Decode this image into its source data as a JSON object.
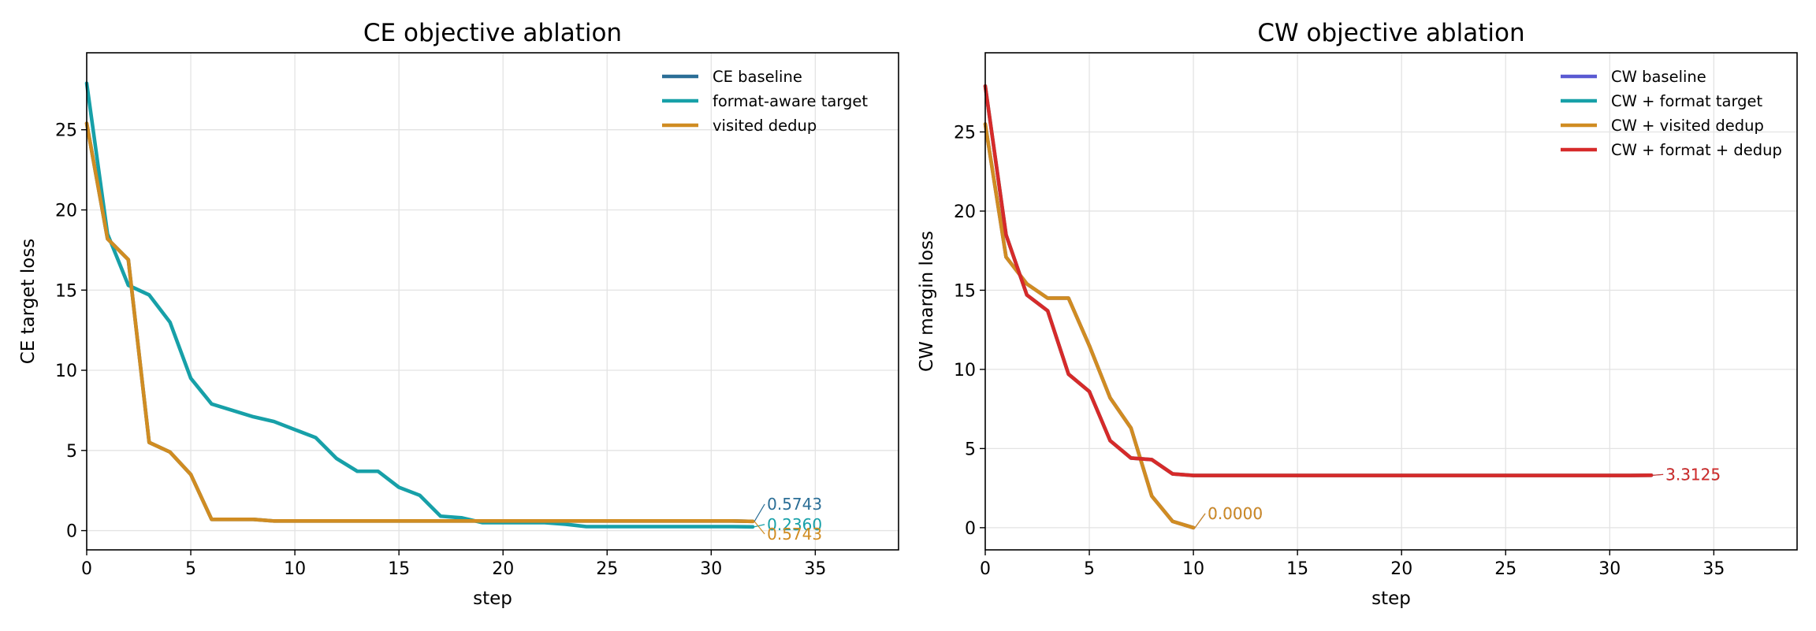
{
  "chart_data": [
    {
      "type": "line",
      "title": "CE objective ablation",
      "xlabel": "step",
      "ylabel": "CE target loss",
      "xlim": [
        0,
        39
      ],
      "ylim": [
        -1.2,
        29.8
      ],
      "xticks": [
        0,
        5,
        10,
        15,
        20,
        25,
        30,
        35
      ],
      "yticks": [
        0,
        5,
        10,
        15,
        20,
        25
      ],
      "grid": true,
      "legend_position": "top-right",
      "series": [
        {
          "name": "CE baseline",
          "color": "#2b6e96",
          "x": [
            0,
            1,
            2,
            3,
            4,
            5,
            6,
            7,
            8,
            9,
            10,
            11,
            12,
            13,
            14,
            15,
            16,
            17,
            18,
            19,
            20,
            21,
            22,
            23,
            24,
            25,
            26,
            27,
            28,
            29,
            30,
            31,
            32
          ],
          "y": [
            25.4,
            18.2,
            16.9,
            5.5,
            4.9,
            3.5,
            0.7,
            0.7,
            0.7,
            0.6,
            0.6,
            0.6,
            0.6,
            0.6,
            0.6,
            0.6,
            0.6,
            0.6,
            0.6,
            0.6,
            0.6,
            0.6,
            0.6,
            0.6,
            0.6,
            0.6,
            0.6,
            0.6,
            0.6,
            0.6,
            0.6,
            0.6,
            0.5743
          ],
          "end_label": "0.5743"
        },
        {
          "name": "format-aware target",
          "color": "#17a0a8",
          "x": [
            0,
            1,
            2,
            3,
            4,
            5,
            6,
            7,
            8,
            9,
            10,
            11,
            12,
            13,
            14,
            15,
            16,
            17,
            18,
            19,
            20,
            21,
            22,
            23,
            24,
            25,
            26,
            27,
            28,
            29,
            30,
            31,
            32
          ],
          "y": [
            27.9,
            18.5,
            15.3,
            14.7,
            13.0,
            9.5,
            7.9,
            7.5,
            7.1,
            6.8,
            6.3,
            5.8,
            4.5,
            3.7,
            3.7,
            2.7,
            2.2,
            0.9,
            0.8,
            0.5,
            0.5,
            0.5,
            0.5,
            0.4,
            0.25,
            0.25,
            0.25,
            0.25,
            0.25,
            0.25,
            0.25,
            0.25,
            0.236
          ],
          "end_label": "0.2360"
        },
        {
          "name": "visited dedup",
          "color": "#d08c22",
          "x": [
            0,
            1,
            2,
            3,
            4,
            5,
            6,
            7,
            8,
            9,
            10,
            11,
            12,
            13,
            14,
            15,
            16,
            17,
            18,
            19,
            20,
            21,
            22,
            23,
            24,
            25,
            26,
            27,
            28,
            29,
            30,
            31,
            32
          ],
          "y": [
            25.4,
            18.2,
            16.9,
            5.5,
            4.9,
            3.5,
            0.7,
            0.7,
            0.7,
            0.6,
            0.6,
            0.6,
            0.6,
            0.6,
            0.6,
            0.6,
            0.6,
            0.6,
            0.6,
            0.6,
            0.6,
            0.6,
            0.6,
            0.6,
            0.6,
            0.6,
            0.6,
            0.6,
            0.6,
            0.6,
            0.6,
            0.6,
            0.5743
          ],
          "end_label": "0.5743"
        }
      ]
    },
    {
      "type": "line",
      "title": "CW objective ablation",
      "xlabel": "step",
      "ylabel": "CW margin loss",
      "xlim": [
        0,
        39
      ],
      "ylim": [
        -1.4,
        30.0
      ],
      "xticks": [
        0,
        5,
        10,
        15,
        20,
        25,
        30,
        35
      ],
      "yticks": [
        0,
        5,
        10,
        15,
        20,
        25
      ],
      "grid": true,
      "legend_position": "top-right",
      "series": [
        {
          "name": "CW baseline",
          "color": "#5a5ad2",
          "x": [
            0,
            1,
            2,
            3,
            4,
            5,
            6,
            7,
            8,
            9,
            10
          ],
          "y": [
            25.5,
            17.1,
            15.4,
            14.5,
            14.5,
            11.5,
            8.2,
            6.3,
            2.0,
            0.4,
            0.0
          ],
          "end_label": "0.0000"
        },
        {
          "name": "CW + format target",
          "color": "#17a0a8",
          "x": [
            0,
            1,
            2,
            3,
            4,
            5,
            6,
            7,
            8,
            9,
            10,
            11,
            12,
            13,
            14,
            15,
            16,
            17,
            18,
            19,
            20,
            21,
            22,
            23,
            24,
            25,
            26,
            27,
            28,
            29,
            30,
            31,
            32
          ],
          "y": [
            27.9,
            18.5,
            14.7,
            13.7,
            9.7,
            8.6,
            5.5,
            4.4,
            4.3,
            3.4,
            3.3,
            3.3,
            3.3,
            3.3,
            3.3,
            3.3,
            3.3,
            3.3,
            3.3,
            3.3,
            3.3,
            3.3,
            3.3,
            3.3,
            3.3,
            3.3,
            3.3,
            3.3,
            3.3,
            3.3,
            3.3,
            3.3,
            3.3125
          ],
          "end_label": "3.3125"
        },
        {
          "name": "CW + visited dedup",
          "color": "#d08c22",
          "x": [
            0,
            1,
            2,
            3,
            4,
            5,
            6,
            7,
            8,
            9,
            10
          ],
          "y": [
            25.5,
            17.1,
            15.4,
            14.5,
            14.5,
            11.5,
            8.2,
            6.3,
            2.0,
            0.4,
            0.0
          ],
          "end_label": "0.0000"
        },
        {
          "name": "CW + format + dedup",
          "color": "#d62a2a",
          "x": [
            0,
            1,
            2,
            3,
            4,
            5,
            6,
            7,
            8,
            9,
            10,
            11,
            12,
            13,
            14,
            15,
            16,
            17,
            18,
            19,
            20,
            21,
            22,
            23,
            24,
            25,
            26,
            27,
            28,
            29,
            30,
            31,
            32
          ],
          "y": [
            27.9,
            18.5,
            14.7,
            13.7,
            9.7,
            8.6,
            5.5,
            4.4,
            4.3,
            3.4,
            3.3,
            3.3,
            3.3,
            3.3,
            3.3,
            3.3,
            3.3,
            3.3,
            3.3,
            3.3,
            3.3,
            3.3,
            3.3,
            3.3,
            3.3,
            3.3,
            3.3,
            3.3,
            3.3,
            3.3,
            3.3,
            3.3,
            3.3125
          ],
          "end_label": "3.3125"
        }
      ]
    }
  ]
}
